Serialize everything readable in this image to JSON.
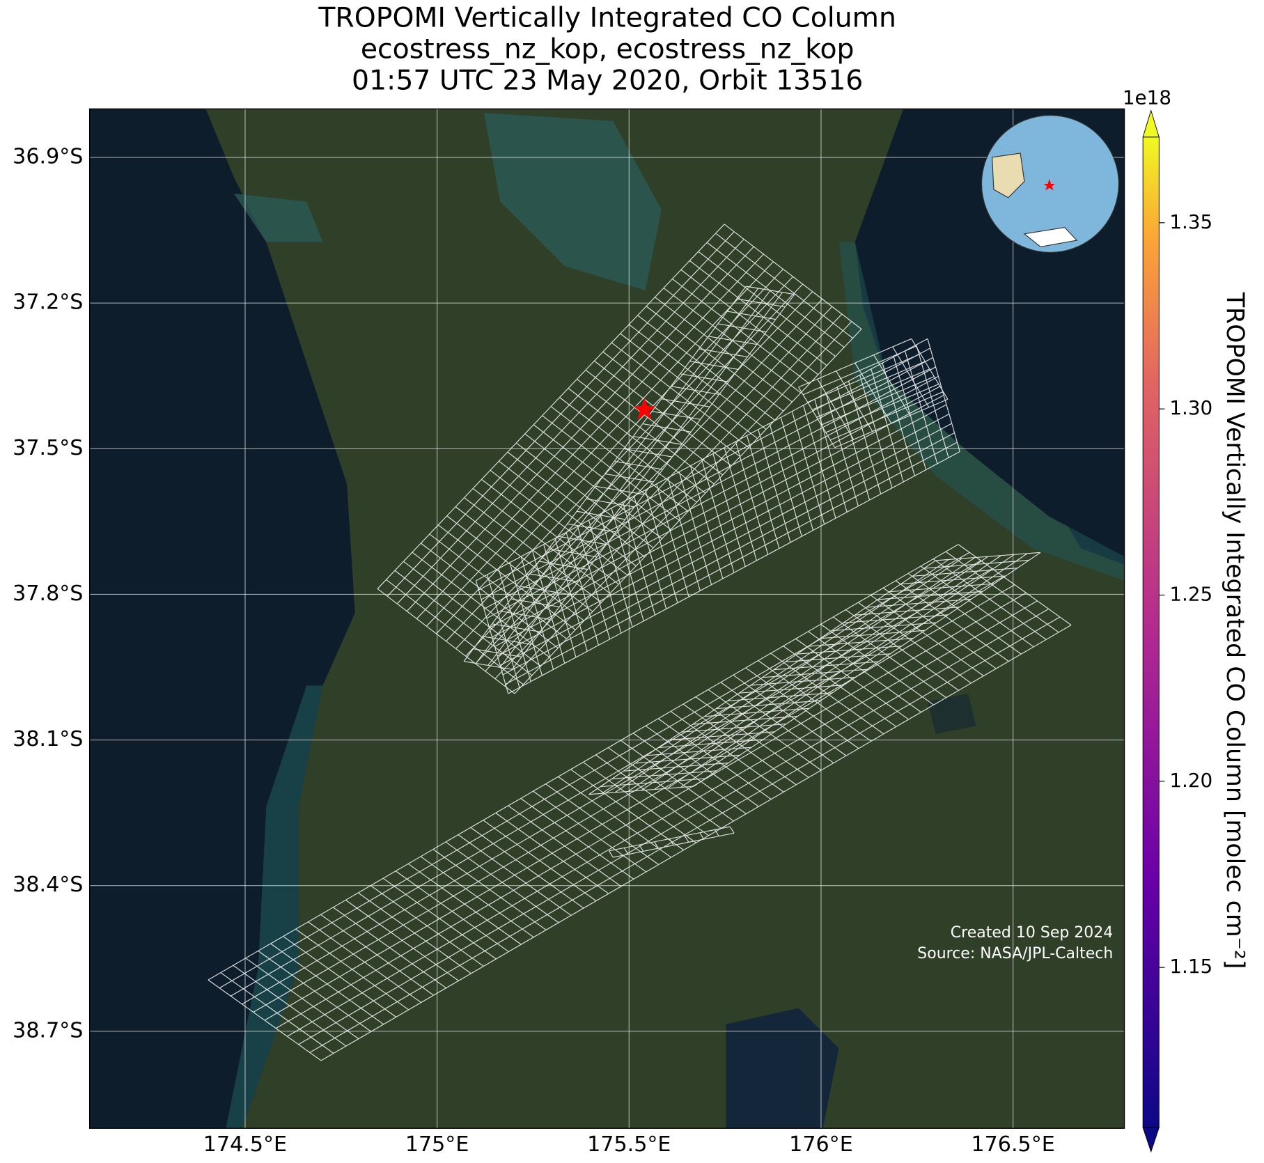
{
  "chart_data": {
    "type": "map",
    "title": [
      "TROPOMI Vertically Integrated CO Column",
      "ecostress_nz_kop, ecostress_nz_kop",
      "01:57 UTC 23 May 2020, Orbit 13516"
    ],
    "xlim": [
      174.095,
      176.79
    ],
    "ylim": [
      -38.9,
      -36.8
    ],
    "xticks": [
      {
        "value": 174.5,
        "label": "174.5°E"
      },
      {
        "value": 175,
        "label": "175°E"
      },
      {
        "value": 175.5,
        "label": "175.5°E"
      },
      {
        "value": 176,
        "label": "176°E"
      },
      {
        "value": 176.5,
        "label": "176.5°E"
      }
    ],
    "yticks": [
      {
        "value": -36.9,
        "label": "36.9°S"
      },
      {
        "value": -37.2,
        "label": "37.2°S"
      },
      {
        "value": -37.5,
        "label": "37.5°S"
      },
      {
        "value": -37.8,
        "label": "37.8°S"
      },
      {
        "value": -38.1,
        "label": "38.1°S"
      },
      {
        "value": -38.4,
        "label": "38.4°S"
      },
      {
        "value": -38.7,
        "label": "38.7°S"
      }
    ],
    "grid": true,
    "target": {
      "lon": 175.54,
      "lat": -37.42,
      "color": "#ff0000"
    },
    "colorbar": {
      "label": "TROPOMI Vertically Integrated CO Column [molec cm⁻²]",
      "offset_label": "1e18",
      "lim": [
        1.107,
        1.373
      ],
      "ticks": [
        1.15,
        {
          "value": 1.2,
          "label": "1.20"
        },
        1.25,
        {
          "value": 1.3,
          "label": "1.30"
        },
        1.35
      ]
    },
    "footer": [
      "Created 10 Sep 2024",
      "Source: NASA/JPL-Caltech"
    ]
  }
}
